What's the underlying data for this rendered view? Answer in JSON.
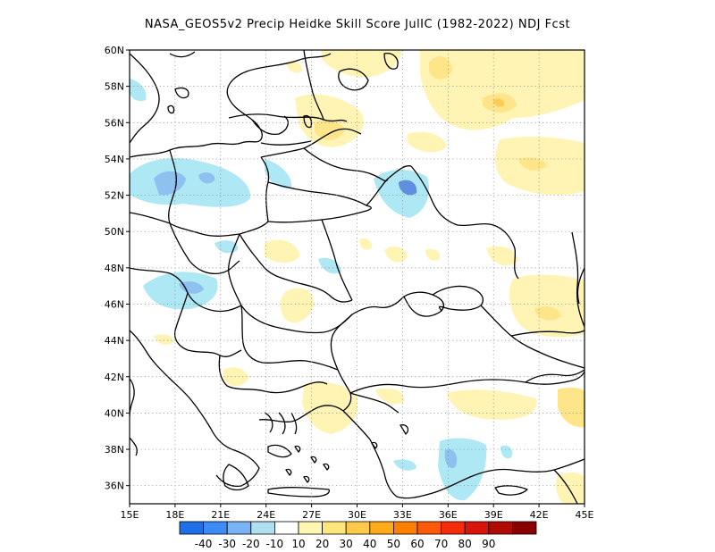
{
  "title": "NASA_GEOS5v2 Precip Heidke Skill Score JulIC (1982-2022) NDJ Fcst",
  "map": {
    "lon_range": [
      15,
      45
    ],
    "lat_range": [
      35,
      60
    ],
    "x_ticks": [
      "15E",
      "18E",
      "21E",
      "24E",
      "27E",
      "30E",
      "33E",
      "36E",
      "39E",
      "42E",
      "45E"
    ],
    "y_ticks": [
      "36N",
      "38N",
      "40N",
      "42N",
      "44N",
      "46N",
      "48N",
      "50N",
      "52N",
      "54N",
      "56N",
      "58N",
      "60N"
    ]
  },
  "colorbar": {
    "colors": [
      "#1f6fe6",
      "#3d8cf5",
      "#78b2f7",
      "#aee0f2",
      "#ffffff",
      "#fff6b0",
      "#ffe67a",
      "#ffc94a",
      "#ffaa1a",
      "#ff7f00",
      "#ff5a0a",
      "#f52b0a",
      "#d91408",
      "#b00a05",
      "#8a0000"
    ],
    "labels": [
      "-40",
      "-30",
      "-20",
      "-10",
      "10",
      "20",
      "30",
      "40",
      "50",
      "60",
      "70",
      "80",
      "90"
    ]
  },
  "colors": {
    "light_blue": "#aee8f4",
    "mid_blue": "#8ec0f0",
    "dark_blue": "#5f8fe0",
    "light_yellow": "#fff4b4",
    "mid_yellow": "#ffe58a",
    "orange": "#ffcb55"
  }
}
